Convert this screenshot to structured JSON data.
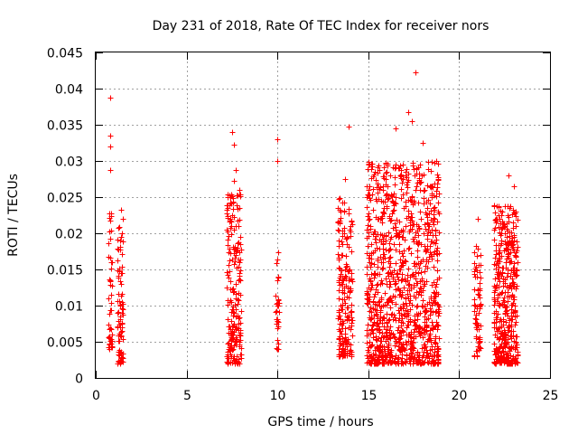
{
  "chart_data": {
    "type": "scatter",
    "title": "Day 231 of 2018, Rate Of TEC Index for receiver nors",
    "xlabel": "GPS time / hours",
    "ylabel": "ROTI / TECUs",
    "xlim": [
      0,
      25
    ],
    "ylim": [
      0,
      0.045
    ],
    "xticks": [
      0,
      5,
      10,
      15,
      20,
      25
    ],
    "xtick_labels": [
      "0",
      "5",
      "10",
      "15",
      "20",
      "25"
    ],
    "yticks": [
      0,
      0.005,
      0.01,
      0.015,
      0.02,
      0.025,
      0.03,
      0.035,
      0.04,
      0.045
    ],
    "ytick_labels": [
      "0",
      "0.005",
      "0.01",
      "0.015",
      "0.02",
      "0.025",
      "0.03",
      "0.035",
      "0.04",
      "0.045"
    ],
    "grid": true,
    "marker": "+",
    "color": "#ff0000",
    "clusters": [
      {
        "x_range": [
          0.7,
          0.9
        ],
        "y_range": [
          0.004,
          0.023
        ],
        "n": 45,
        "outliers": [
          [
            0.8,
            0.0388
          ],
          [
            0.8,
            0.0335
          ],
          [
            0.8,
            0.032
          ],
          [
            0.8,
            0.0288
          ]
        ]
      },
      {
        "x_range": [
          1.2,
          1.5
        ],
        "y_range": [
          0.002,
          0.022
        ],
        "n": 90,
        "outliers": [
          [
            1.4,
            0.0232
          ]
        ]
      },
      {
        "x_range": [
          7.2,
          8.0
        ],
        "y_range": [
          0.002,
          0.026
        ],
        "n": 220,
        "outliers": [
          [
            7.5,
            0.034
          ],
          [
            7.6,
            0.0323
          ],
          [
            7.7,
            0.0288
          ],
          [
            7.6,
            0.0272
          ]
        ]
      },
      {
        "x_range": [
          9.9,
          10.1
        ],
        "y_range": [
          0.004,
          0.018
        ],
        "n": 30,
        "outliers": [
          [
            10.0,
            0.033
          ],
          [
            10.0,
            0.03
          ]
        ]
      },
      {
        "x_range": [
          13.3,
          14.1
        ],
        "y_range": [
          0.003,
          0.025
        ],
        "n": 200,
        "outliers": [
          [
            13.9,
            0.0347
          ],
          [
            13.7,
            0.0275
          ]
        ]
      },
      {
        "x_range": [
          14.9,
          18.9
        ],
        "y_range": [
          0.002,
          0.03
        ],
        "n": 1100,
        "outliers": [
          [
            17.6,
            0.0422
          ],
          [
            17.2,
            0.0368
          ],
          [
            16.5,
            0.0345
          ],
          [
            17.4,
            0.0355
          ],
          [
            18.0,
            0.0325
          ]
        ]
      },
      {
        "x_range": [
          20.8,
          21.2
        ],
        "y_range": [
          0.003,
          0.019
        ],
        "n": 70,
        "outliers": [
          [
            21.0,
            0.022
          ]
        ]
      },
      {
        "x_range": [
          21.9,
          23.2
        ],
        "y_range": [
          0.002,
          0.024
        ],
        "n": 450,
        "outliers": [
          [
            22.7,
            0.028
          ],
          [
            23.0,
            0.0265
          ]
        ]
      }
    ]
  }
}
